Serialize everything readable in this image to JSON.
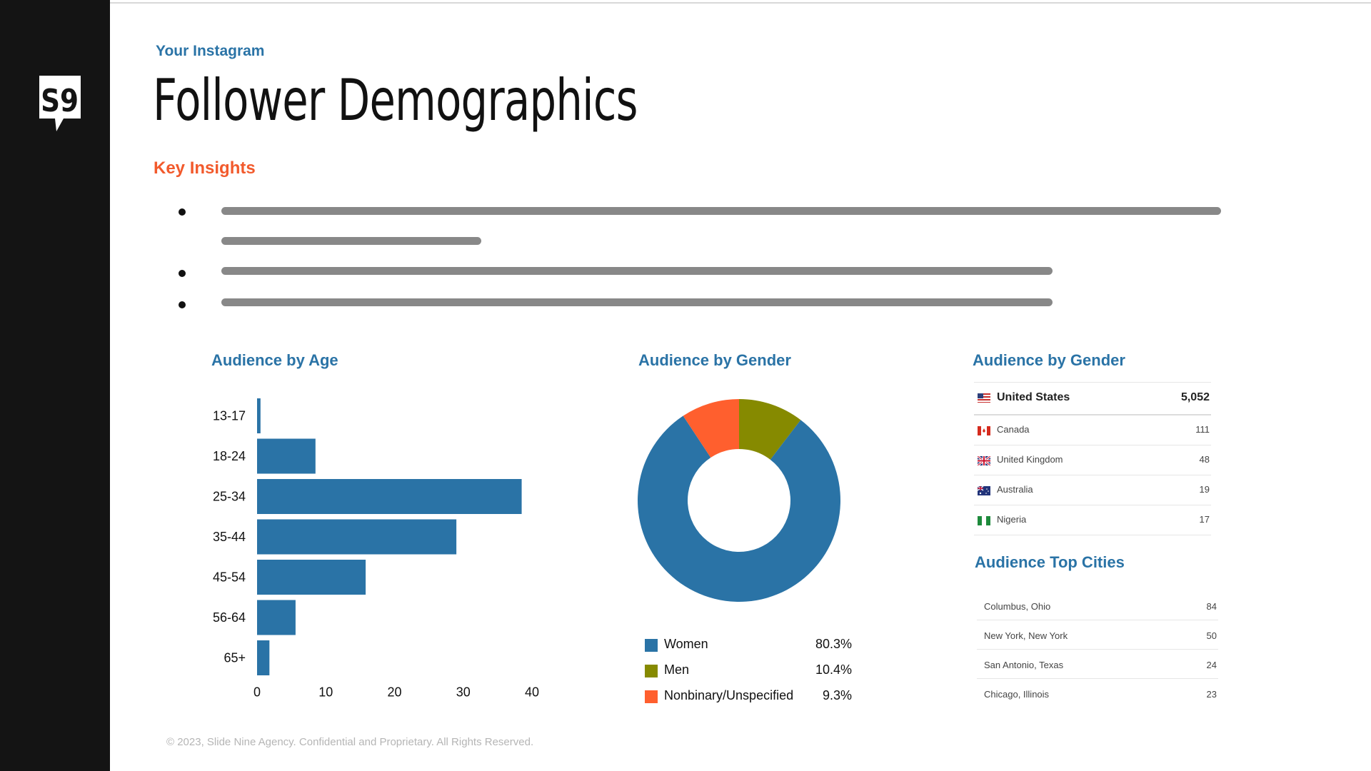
{
  "header": {
    "eyebrow": "Your Instagram",
    "title": "Follower Demographics",
    "logo_text": "S9"
  },
  "insights": {
    "title": "Key Insights"
  },
  "age_section": {
    "title": "Audience by Age"
  },
  "gender_section": {
    "title": "Audience by Gender"
  },
  "country_section": {
    "title": "Audience by Gender"
  },
  "cities_section": {
    "title": "Audience Top Cities"
  },
  "chart_data": [
    {
      "type": "bar",
      "orientation": "horizontal",
      "title": "Audience by Age",
      "categories": [
        "13-17",
        "18-24",
        "25-34",
        "35-44",
        "45-54",
        "56-64",
        "65+"
      ],
      "values": [
        0.5,
        8.5,
        38.5,
        29,
        15.8,
        5.6,
        1.8
      ],
      "xticks": [
        0,
        10,
        20,
        30,
        40
      ],
      "xlim": [
        0,
        40
      ],
      "color": "#2a73a6"
    },
    {
      "type": "pie",
      "style": "donut",
      "title": "Audience by Gender",
      "series": [
        {
          "name": "Women",
          "value": 80.3,
          "label": "80.3%",
          "color": "#2a73a6"
        },
        {
          "name": "Men",
          "value": 10.4,
          "label": "10.4%",
          "color": "#868a00"
        },
        {
          "name": "Nonbinary/Unspecified",
          "value": 9.3,
          "label": "9.3%",
          "color": "#ff5f2e"
        }
      ]
    }
  ],
  "countries": [
    {
      "name": "United States",
      "count": "5,052",
      "flag": "us-flag-icon"
    },
    {
      "name": "Canada",
      "count": "111",
      "flag": "canada-flag-icon"
    },
    {
      "name": "United Kingdom",
      "count": "48",
      "flag": "uk-flag-icon"
    },
    {
      "name": "Australia",
      "count": "19",
      "flag": "australia-flag-icon"
    },
    {
      "name": "Nigeria",
      "count": "17",
      "flag": "nigeria-flag-icon"
    }
  ],
  "cities": [
    {
      "name": "Columbus, Ohio",
      "count": "84"
    },
    {
      "name": "New York, New York",
      "count": "50"
    },
    {
      "name": "San Antonio, Texas",
      "count": "24"
    },
    {
      "name": "Chicago, Illinois",
      "count": "23"
    }
  ],
  "footer": {
    "text": "© 2023, Slide Nine Agency. Confidential and Proprietary. All Rights Reserved."
  }
}
